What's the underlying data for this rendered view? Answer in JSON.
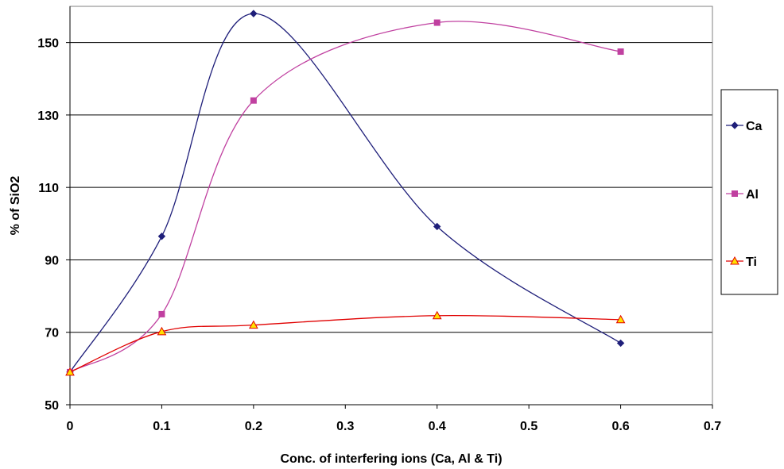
{
  "chart_data": {
    "type": "line",
    "xlabel": "Conc. of interfering ions (Ca, Al & Ti)",
    "ylabel": "% of SiO2",
    "xlim": [
      0,
      0.7
    ],
    "ylim": [
      50,
      160
    ],
    "x_ticks": [
      "0",
      "0.1",
      "0.2",
      "0.3",
      "0.4",
      "0.5",
      "0.6",
      "0.7"
    ],
    "y_ticks": [
      "50",
      "70",
      "90",
      "110",
      "130",
      "150"
    ],
    "grid": "horizontal",
    "legend_position": "right",
    "smooth": true,
    "series": [
      {
        "name": "Ca",
        "color": "#1f1f7a",
        "marker": "diamond",
        "x": [
          0,
          0.1,
          0.2,
          0.4,
          0.6
        ],
        "y": [
          59,
          96.5,
          158,
          99.2,
          67
        ]
      },
      {
        "name": "Al",
        "color": "#c040a0",
        "marker": "square",
        "x": [
          0,
          0.1,
          0.2,
          0.4,
          0.6
        ],
        "y": [
          59,
          75,
          134,
          155.5,
          147.5
        ]
      },
      {
        "name": "Ti",
        "color": "#e00000",
        "marker": "triangle",
        "marker_fill": "#ffe000",
        "x": [
          0,
          0.1,
          0.2,
          0.4,
          0.6
        ],
        "y": [
          59,
          70.2,
          72,
          74.6,
          73.5
        ]
      }
    ]
  }
}
